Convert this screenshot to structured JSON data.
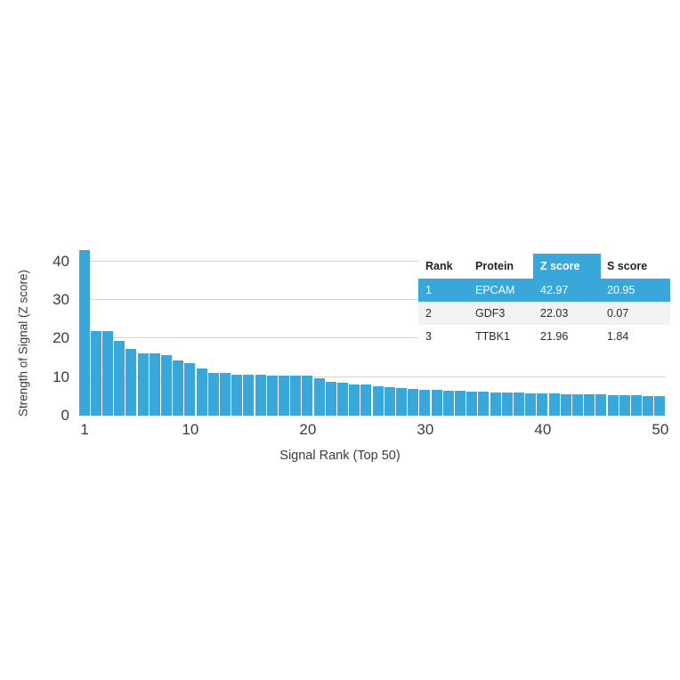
{
  "chart_data": {
    "type": "bar",
    "title": "",
    "xlabel": "Signal Rank (Top 50)",
    "ylabel": "Strength of Signal (Z score)",
    "x": [
      1,
      2,
      3,
      4,
      5,
      6,
      7,
      8,
      9,
      10,
      11,
      12,
      13,
      14,
      15,
      16,
      17,
      18,
      19,
      20,
      21,
      22,
      23,
      24,
      25,
      26,
      27,
      28,
      29,
      30,
      31,
      32,
      33,
      34,
      35,
      36,
      37,
      38,
      39,
      40,
      41,
      42,
      43,
      44,
      45,
      46,
      47,
      48,
      49,
      50
    ],
    "values": [
      42.97,
      22.03,
      21.96,
      19.5,
      17.4,
      16.2,
      16.1,
      15.8,
      14.4,
      13.7,
      12.2,
      11.2,
      11.0,
      10.7,
      10.7,
      10.6,
      10.5,
      10.5,
      10.4,
      10.3,
      9.7,
      8.8,
      8.5,
      8.2,
      8.0,
      7.6,
      7.3,
      7.1,
      6.9,
      6.7,
      6.6,
      6.5,
      6.4,
      6.3,
      6.2,
      6.0,
      5.9,
      5.9,
      5.8,
      5.8,
      5.7,
      5.6,
      5.6,
      5.5,
      5.5,
      5.4,
      5.3,
      5.3,
      5.2,
      5.2
    ],
    "x_ticks": [
      1,
      10,
      20,
      30,
      40,
      50
    ],
    "y_ticks": [
      0,
      10,
      20,
      30,
      40
    ],
    "ylim": [
      0,
      45.5
    ],
    "grid": true,
    "bar_color": "#3AA7DB",
    "gridline_color": "#d4d4d4",
    "legend_position": "none"
  },
  "table": {
    "columns": [
      "Rank",
      "Protein",
      "Z score",
      "S score"
    ],
    "highlight_col_index": 2,
    "highlight_row_index": 0,
    "rows": [
      [
        "1",
        "EPCAM",
        "42.97",
        "20.95"
      ],
      [
        "2",
        "GDF3",
        "22.03",
        "0.07"
      ],
      [
        "3",
        "TTBK1",
        "21.96",
        "1.84"
      ]
    ],
    "highlight_color": "#3AA7DB",
    "highlight_text_color": "#ffffff",
    "alt_row_color": "#f2f2f2",
    "header_text_color": "#222222",
    "body_text_color": "#2b2b2b"
  }
}
